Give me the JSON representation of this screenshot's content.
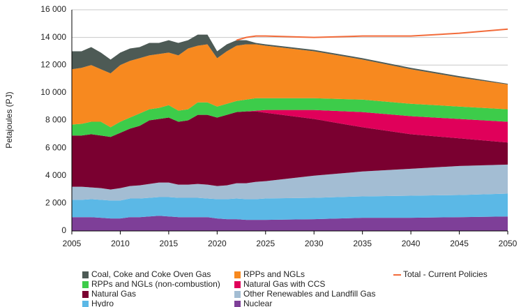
{
  "chart_data": {
    "type": "area",
    "stacked": true,
    "y_label": "Petajoules (PJ)",
    "x": [
      2005,
      2006,
      2007,
      2008,
      2009,
      2010,
      2011,
      2012,
      2013,
      2014,
      2015,
      2016,
      2017,
      2018,
      2019,
      2020,
      2021,
      2022,
      2023,
      2024,
      2025,
      2030,
      2035,
      2040,
      2045,
      2050
    ],
    "xlim": [
      2005,
      2050
    ],
    "xticks": [
      2005,
      2010,
      2015,
      2020,
      2025,
      2030,
      2035,
      2040,
      2045,
      2050
    ],
    "ylim": [
      0,
      16000
    ],
    "yticks": [
      0,
      {
        "value": 2000,
        "label": "2 000"
      },
      {
        "value": 4000,
        "label": "4 000"
      },
      {
        "value": 6000,
        "label": "6 000"
      },
      {
        "value": 8000,
        "label": "8 000"
      },
      {
        "value": 10000,
        "label": "10 000"
      },
      {
        "value": 12000,
        "label": "12 000"
      },
      {
        "value": 14000,
        "label": "14 000"
      },
      {
        "value": 16000,
        "label": "16 000"
      }
    ],
    "grid": true,
    "legend": "bottom",
    "series": [
      {
        "name": "Nuclear",
        "color": "#7e3f98",
        "values": [
          1000,
          1000,
          1000,
          950,
          900,
          900,
          1000,
          1000,
          1050,
          1100,
          1050,
          1000,
          1000,
          1000,
          1000,
          900,
          850,
          850,
          800,
          800,
          800,
          850,
          950,
          950,
          1000,
          1050
        ]
      },
      {
        "name": "Hydro",
        "color": "#5bb8e6",
        "values": [
          1250,
          1250,
          1300,
          1300,
          1300,
          1300,
          1350,
          1350,
          1350,
          1350,
          1400,
          1400,
          1400,
          1400,
          1350,
          1400,
          1450,
          1500,
          1500,
          1500,
          1550,
          1550,
          1550,
          1600,
          1600,
          1650
        ]
      },
      {
        "name": "Other Renewables and Landfill Gas",
        "color": "#a3bdd3",
        "values": [
          950,
          950,
          850,
          850,
          800,
          900,
          900,
          950,
          1000,
          1050,
          1050,
          950,
          950,
          1000,
          1000,
          950,
          1000,
          1100,
          1150,
          1250,
          1250,
          1600,
          1800,
          1950,
          2100,
          2100
        ]
      },
      {
        "name": "Natural Gas",
        "color": "#7a0030",
        "values": [
          3700,
          3700,
          3850,
          3800,
          3800,
          4000,
          4150,
          4300,
          4600,
          4600,
          4700,
          4550,
          4650,
          5000,
          5050,
          4950,
          5100,
          5150,
          5200,
          5100,
          4950,
          4100,
          3200,
          2500,
          2000,
          1600
        ]
      },
      {
        "name": "Natural Gas with CCS",
        "color": "#e0005a",
        "values": [
          0,
          0,
          0,
          0,
          0,
          0,
          0,
          0,
          0,
          0,
          0,
          0,
          0,
          0,
          0,
          0,
          0,
          0,
          0,
          50,
          200,
          650,
          1100,
          1300,
          1400,
          1500
        ]
      },
      {
        "name": "RPPs and NGLs (non-combustion)",
        "color": "#3dcc4a",
        "values": [
          800,
          850,
          900,
          1000,
          700,
          800,
          800,
          900,
          800,
          800,
          900,
          800,
          800,
          900,
          900,
          800,
          800,
          800,
          850,
          900,
          850,
          850,
          900,
          900,
          900,
          900
        ]
      },
      {
        "name": "RPPs and NGLs",
        "color": "#f7891f",
        "values": [
          4000,
          4050,
          4100,
          3800,
          3900,
          4100,
          4100,
          4000,
          3900,
          3900,
          3800,
          4000,
          4400,
          4100,
          4200,
          3500,
          3800,
          4000,
          4000,
          3900,
          3800,
          3400,
          2900,
          2500,
          2100,
          1800
        ]
      },
      {
        "name": "Coal, Coke and Coke Oven Gas",
        "color": "#4d5a55",
        "values": [
          1300,
          1200,
          1300,
          1200,
          1000,
          900,
          900,
          800,
          900,
          800,
          900,
          900,
          600,
          800,
          700,
          500,
          500,
          400,
          300,
          100,
          100,
          100,
          100,
          100,
          100,
          50
        ]
      },
      {
        "name": "Total - Current Policies",
        "type": "line",
        "color": "#f26b3a",
        "values": [
          null,
          null,
          null,
          null,
          null,
          null,
          null,
          null,
          null,
          null,
          null,
          null,
          null,
          null,
          null,
          null,
          null,
          13800,
          14000,
          14100,
          14100,
          14000,
          14100,
          14100,
          14300,
          14600
        ]
      }
    ]
  }
}
